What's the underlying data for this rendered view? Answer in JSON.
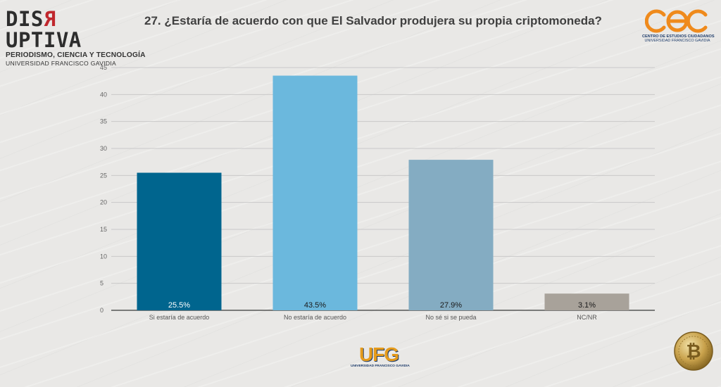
{
  "header": {
    "logo_left": {
      "word_prefix": "DIS",
      "word_reversed": "R",
      "word_suffix": "UPTIVA",
      "line1": "PERIODISMO, CIENCIA Y TECNOLOGÍA",
      "line2": "UNIVERSIDAD FRANCISCO GAVIDIA"
    },
    "logo_right": {
      "mark": "cec",
      "line1": "CENTRO DE ESTUDIOS CIUDADANOS",
      "line2": "UNIVERSIDAD FRANCISCO GAVIDIA"
    }
  },
  "footer": {
    "logo_ufg": {
      "mark": "UFG",
      "line1": "UNIVERSIDAD FRANCISCO GAVIDIA"
    },
    "coin_icon": "bitcoin-icon"
  },
  "colors": {
    "accent_red": "#c0272d",
    "cec_orange": "#ef8a1c",
    "ufg_gold": "#e59b1c"
  },
  "chart_data": {
    "type": "bar",
    "title": "27. ¿Estaría de acuerdo con que El Salvador produjera su propia criptomoneda?",
    "categories": [
      "Si estaría de acuerdo",
      "No estaría de acuerdo",
      "No sé si se pueda",
      "NC/NR"
    ],
    "values": [
      25.5,
      43.5,
      27.9,
      3.1
    ],
    "value_labels": [
      "25.5%",
      "43.5%",
      "27.9%",
      "3.1%"
    ],
    "bar_colors": [
      "#00658e",
      "#6bb8dd",
      "#84acc2",
      "#a8a29a"
    ],
    "xlabel": "",
    "ylabel": "",
    "ylim": [
      0,
      45
    ],
    "yticks": [
      0,
      5,
      10,
      15,
      20,
      25,
      30,
      35,
      40,
      45
    ],
    "grid": true,
    "legend": "none"
  }
}
